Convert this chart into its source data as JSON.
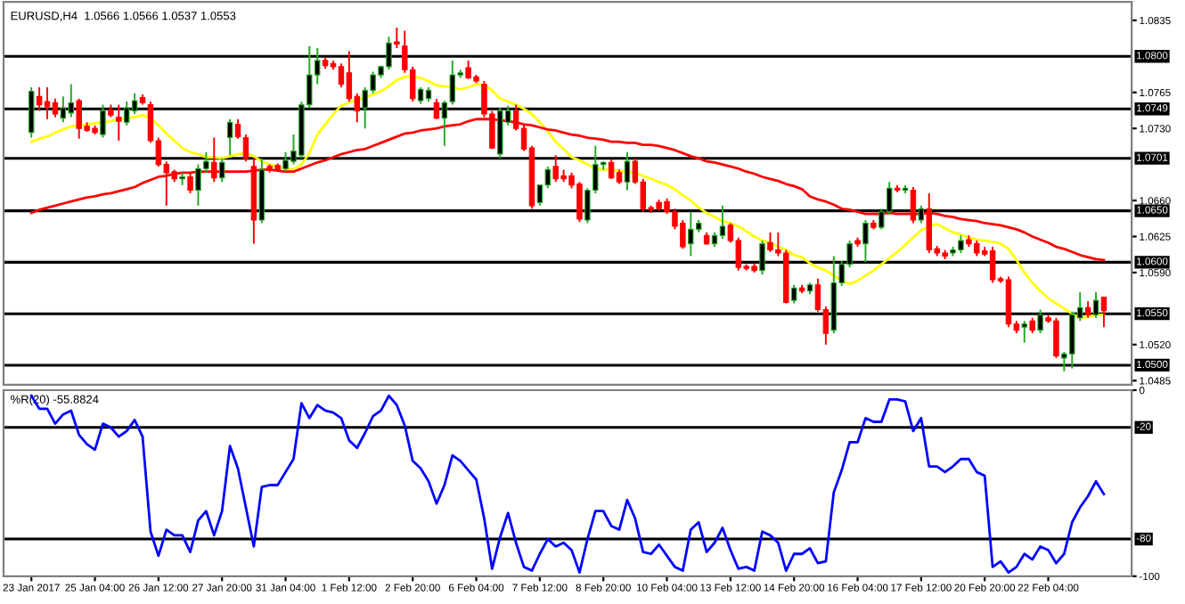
{
  "chart_data": [
    {
      "type": "candlestick",
      "title": "EURUSD,H4  1.0566 1.0566 1.0537 1.0553",
      "tick_labels": "y",
      "ohlc": [
        [
          1.0726,
          1.077,
          1.0721,
          1.0766
        ],
        [
          1.0761,
          1.077,
          1.0747,
          1.0753
        ],
        [
          1.0756,
          1.077,
          1.0739,
          1.0751
        ],
        [
          1.0755,
          1.0759,
          1.0741,
          1.0744
        ],
        [
          1.074,
          1.0761,
          1.0736,
          1.075
        ],
        [
          1.0745,
          1.0773,
          1.0741,
          1.0755
        ],
        [
          1.0757,
          1.0759,
          1.072,
          1.073
        ],
        [
          1.0732,
          1.0736,
          1.0727,
          1.0728
        ],
        [
          1.073,
          1.0733,
          1.0724,
          1.0726
        ],
        [
          1.0724,
          1.0753,
          1.0721,
          1.0747
        ],
        [
          1.0748,
          1.0753,
          1.0741,
          1.0743
        ],
        [
          1.0741,
          1.0753,
          1.0718,
          1.0737
        ],
        [
          1.0736,
          1.0756,
          1.0733,
          1.075
        ],
        [
          1.0747,
          1.0764,
          1.0744,
          1.0757
        ],
        [
          1.076,
          1.0763,
          1.0753,
          1.0755
        ],
        [
          1.0753,
          1.0756,
          1.0716,
          1.0718
        ],
        [
          1.0718,
          1.0721,
          1.0693,
          1.0695
        ],
        [
          1.0695,
          1.0698,
          1.0655,
          1.0687
        ],
        [
          1.0688,
          1.069,
          1.0678,
          1.0681
        ],
        [
          1.0681,
          1.0687,
          1.0675,
          1.0683
        ],
        [
          1.0683,
          1.0687,
          1.0667,
          1.067
        ],
        [
          1.067,
          1.0695,
          1.0655,
          1.0691
        ],
        [
          1.0691,
          1.0707,
          1.0687,
          1.0698
        ],
        [
          1.0697,
          1.0721,
          1.0678,
          1.0682
        ],
        [
          1.0682,
          1.0701,
          1.0678,
          1.0697
        ],
        [
          1.0721,
          1.0739,
          1.0704,
          1.0736
        ],
        [
          1.0734,
          1.0739,
          1.072,
          1.0722
        ],
        [
          1.0721,
          1.0724,
          1.0698,
          1.0701
        ],
        [
          1.0693,
          1.0701,
          1.0618,
          1.0641
        ],
        [
          1.0641,
          1.0701,
          1.0638,
          1.069
        ],
        [
          1.0693,
          1.0695,
          1.0687,
          1.069
        ],
        [
          1.0694,
          1.0696,
          1.0688,
          1.069
        ],
        [
          1.0691,
          1.0707,
          1.0688,
          1.0699
        ],
        [
          1.0698,
          1.0724,
          1.0695,
          1.0708
        ],
        [
          1.0704,
          1.0756,
          1.0701,
          1.0753
        ],
        [
          1.0753,
          1.081,
          1.075,
          1.0782
        ],
        [
          1.0782,
          1.0808,
          1.0773,
          1.0796
        ],
        [
          1.0796,
          1.0799,
          1.0788,
          1.0791
        ],
        [
          1.0793,
          1.0796,
          1.0787,
          1.079
        ],
        [
          1.079,
          1.0793,
          1.077,
          1.0773
        ],
        [
          1.0784,
          1.0805,
          1.0756,
          1.0759
        ],
        [
          1.0761,
          1.0764,
          1.0736,
          1.0747
        ],
        [
          1.075,
          1.077,
          1.073,
          1.0767
        ],
        [
          1.0767,
          1.0785,
          1.0764,
          1.0782
        ],
        [
          1.0782,
          1.0791,
          1.0779,
          1.079
        ],
        [
          1.079,
          1.0819,
          1.0787,
          1.0813
        ],
        [
          1.0814,
          1.0828,
          1.0808,
          1.0812
        ],
        [
          1.081,
          1.0825,
          1.0784,
          1.0787
        ],
        [
          1.0787,
          1.079,
          1.0756,
          1.0759
        ],
        [
          1.0757,
          1.077,
          1.0754,
          1.0768
        ],
        [
          1.0759,
          1.077,
          1.0756,
          1.0767
        ],
        [
          1.0755,
          1.0759,
          1.0739,
          1.074
        ],
        [
          1.074,
          1.0757,
          1.0713,
          1.0755
        ],
        [
          1.0756,
          1.0796,
          1.0753,
          1.0782
        ],
        [
          1.0782,
          1.0787,
          1.0779,
          1.0784
        ],
        [
          1.0789,
          1.0796,
          1.0778,
          1.0779
        ],
        [
          1.078,
          1.0782,
          1.0774,
          1.0776
        ],
        [
          1.0773,
          1.0776,
          1.0741,
          1.0744
        ],
        [
          1.0744,
          1.0747,
          1.071,
          1.0711
        ],
        [
          1.0705,
          1.075,
          1.0701,
          1.0747
        ],
        [
          1.0736,
          1.0752,
          1.0733,
          1.0747
        ],
        [
          1.0747,
          1.0753,
          1.0728,
          1.073
        ],
        [
          1.073,
          1.0733,
          1.0708,
          1.071
        ],
        [
          1.0711,
          1.0713,
          1.0652,
          1.0655
        ],
        [
          1.0658,
          1.0675,
          1.0655,
          1.0675
        ],
        [
          1.0675,
          1.0693,
          1.0672,
          1.069
        ],
        [
          1.0693,
          1.0704,
          1.0678,
          1.0681
        ],
        [
          1.0684,
          1.069,
          1.0678,
          1.0681
        ],
        [
          1.0684,
          1.0687,
          1.0672,
          1.0675
        ],
        [
          1.0676,
          1.0678,
          1.0639,
          1.0642
        ],
        [
          1.0641,
          1.0672,
          1.0638,
          1.067
        ],
        [
          1.067,
          1.0713,
          1.0667,
          1.0695
        ],
        [
          1.0695,
          1.0698,
          1.069,
          1.0697
        ],
        [
          1.0697,
          1.07,
          1.0681,
          1.0682
        ],
        [
          1.0687,
          1.069,
          1.0676,
          1.0678
        ],
        [
          1.0678,
          1.0707,
          1.067,
          1.0698
        ],
        [
          1.0698,
          1.0701,
          1.0676,
          1.0678
        ],
        [
          1.0678,
          1.0681,
          1.0649,
          1.0652
        ],
        [
          1.0653,
          1.0655,
          1.0648,
          1.0651
        ],
        [
          1.0658,
          1.0661,
          1.065,
          1.0652
        ],
        [
          1.0659,
          1.0662,
          1.0647,
          1.0649
        ],
        [
          1.0649,
          1.0652,
          1.0632,
          1.0635
        ],
        [
          1.0638,
          1.0641,
          1.0613,
          1.0615
        ],
        [
          1.0618,
          1.0649,
          1.0606,
          1.0632
        ],
        [
          1.0632,
          1.0641,
          1.0629,
          1.0638
        ],
        [
          1.0626,
          1.0629,
          1.0617,
          1.0618
        ],
        [
          1.0618,
          1.0629,
          1.0615,
          1.0626
        ],
        [
          1.0626,
          1.0655,
          1.0623,
          1.0635
        ],
        [
          1.0636,
          1.0638,
          1.0619,
          1.0621
        ],
        [
          1.0621,
          1.0624,
          1.0592,
          1.0595
        ],
        [
          1.0596,
          1.0598,
          1.0592,
          1.0594
        ],
        [
          1.0596,
          1.0599,
          1.059,
          1.0592
        ],
        [
          1.0592,
          1.0621,
          1.0588,
          1.0618
        ],
        [
          1.0619,
          1.0629,
          1.061,
          1.0612
        ],
        [
          1.0612,
          1.0629,
          1.0606,
          1.0609
        ],
        [
          1.0609,
          1.0612,
          1.056,
          1.0561
        ],
        [
          1.0563,
          1.0578,
          1.056,
          1.0575
        ],
        [
          1.0575,
          1.0578,
          1.057,
          1.0572
        ],
        [
          1.0572,
          1.058,
          1.0569,
          1.0578
        ],
        [
          1.0578,
          1.0584,
          1.0552,
          1.0554
        ],
        [
          1.0554,
          1.0557,
          1.052,
          1.0531
        ],
        [
          1.0534,
          1.0606,
          1.0531,
          1.058
        ],
        [
          1.058,
          1.0601,
          1.0577,
          1.0598
        ],
        [
          1.0598,
          1.0621,
          1.0595,
          1.0618
        ],
        [
          1.0621,
          1.0624,
          1.0615,
          1.0618
        ],
        [
          1.0618,
          1.0641,
          1.06,
          1.0638
        ],
        [
          1.0638,
          1.0641,
          1.0632,
          1.0634
        ],
        [
          1.0634,
          1.0652,
          1.0632,
          1.0649
        ],
        [
          1.0649,
          1.0678,
          1.0646,
          1.0672
        ],
        [
          1.0672,
          1.0675,
          1.0668,
          1.067
        ],
        [
          1.067,
          1.0675,
          1.0667,
          1.0672
        ],
        [
          1.067,
          1.0673,
          1.0638,
          1.0641
        ],
        [
          1.0641,
          1.0655,
          1.0638,
          1.0652
        ],
        [
          1.0652,
          1.0667,
          1.0609,
          1.0612
        ],
        [
          1.0613,
          1.0616,
          1.0606,
          1.0609
        ],
        [
          1.0609,
          1.0612,
          1.0603,
          1.0606
        ],
        [
          1.0609,
          1.0615,
          1.0606,
          1.0612
        ],
        [
          1.0612,
          1.0626,
          1.0609,
          1.0621
        ],
        [
          1.0622,
          1.0626,
          1.0615,
          1.0618
        ],
        [
          1.0618,
          1.0621,
          1.0606,
          1.0609
        ],
        [
          1.0611,
          1.0615,
          1.0606,
          1.0608
        ],
        [
          1.0611,
          1.0615,
          1.058,
          1.0583
        ],
        [
          1.0584,
          1.0586,
          1.058,
          1.0582
        ],
        [
          1.0583,
          1.0586,
          1.0537,
          1.054
        ],
        [
          1.054,
          1.0543,
          1.0531,
          1.0534
        ],
        [
          1.0537,
          1.0543,
          1.0522,
          1.054
        ],
        [
          1.0543,
          1.0546,
          1.0531,
          1.0534
        ],
        [
          1.0534,
          1.0554,
          1.0531,
          1.0549
        ],
        [
          1.0546,
          1.0549,
          1.0541,
          1.0543
        ],
        [
          1.0543,
          1.0546,
          1.0507,
          1.0509
        ],
        [
          1.0507,
          1.0513,
          1.0494,
          1.0511
        ],
        [
          1.0511,
          1.0552,
          1.0497,
          1.0549
        ],
        [
          1.0546,
          1.0571,
          1.0543,
          1.0556
        ],
        [
          1.0556,
          1.0562,
          1.0546,
          1.0549
        ],
        [
          1.0549,
          1.0571,
          1.0546,
          1.0563
        ],
        [
          1.0566,
          1.0566,
          1.0537,
          1.0553
        ]
      ],
      "series": [
        {
          "type": "line",
          "color": "#ffff00",
          "values": [
            1.0717,
            1.072,
            1.0722,
            1.0726,
            1.0729,
            1.0732,
            1.0733,
            1.0734,
            1.0735,
            1.0736,
            1.0737,
            1.0739,
            1.074,
            1.0741,
            1.0743,
            1.074,
            1.0733,
            1.0725,
            1.0718,
            1.0711,
            1.0707,
            1.0705,
            1.0702,
            1.0702,
            1.0701,
            1.0703,
            1.0705,
            1.0706,
            1.0703,
            1.0698,
            1.0695,
            1.0693,
            1.0691,
            1.069,
            1.0695,
            1.0706,
            1.0724,
            1.0734,
            1.0744,
            1.0752,
            1.0755,
            1.0758,
            1.076,
            1.0763,
            1.0766,
            1.0771,
            1.0777,
            1.078,
            1.0781,
            1.0779,
            1.0776,
            1.0772,
            1.0771,
            1.077,
            1.0768,
            1.077,
            1.0773,
            1.0772,
            1.0767,
            1.0759,
            1.0756,
            1.0753,
            1.0749,
            1.0744,
            1.0736,
            1.0727,
            1.0717,
            1.071,
            1.0702,
            1.0699,
            1.0695,
            1.0691,
            1.069,
            1.069,
            1.0689,
            1.0688,
            1.0687,
            1.0684,
            1.0681,
            1.0678,
            1.0675,
            1.0671,
            1.0665,
            1.066,
            1.0653,
            1.0648,
            1.0644,
            1.064,
            1.0638,
            1.0635,
            1.063,
            1.0625,
            1.0621,
            1.0619,
            1.0615,
            1.0612,
            1.0607,
            1.0605,
            1.0599,
            1.0595,
            1.0592,
            1.0587,
            1.0582,
            1.0579,
            1.0582,
            1.0587,
            1.0592,
            1.0598,
            1.0604,
            1.061,
            1.0617,
            1.0624,
            1.0631,
            1.0635,
            1.0637,
            1.0633,
            1.0629,
            1.0627,
            1.0624,
            1.0622,
            1.0621,
            1.062,
            1.0618,
            1.0613,
            1.0602,
            1.059,
            1.058,
            1.0572,
            1.0565,
            1.056,
            1.0555,
            1.055,
            1.0546,
            1.0547,
            1.0549,
            1.0549
          ]
        },
        {
          "type": "line",
          "color": "#ff0000",
          "values": [
            1.0648,
            1.0651,
            1.0653,
            1.0655,
            1.0657,
            1.0659,
            1.0661,
            1.0663,
            1.0664,
            1.0666,
            1.0667,
            1.0669,
            1.0671,
            1.0673,
            1.0677,
            1.068,
            1.0683,
            1.0684,
            1.0686,
            1.0687,
            1.0687,
            1.0688,
            1.0688,
            1.0688,
            1.0688,
            1.0688,
            1.0688,
            1.0688,
            1.0689,
            1.069,
            1.069,
            1.0689,
            1.0688,
            1.0688,
            1.0691,
            1.0694,
            1.0697,
            1.0699,
            1.0702,
            1.0705,
            1.0707,
            1.0709,
            1.071,
            1.0713,
            1.0716,
            1.0719,
            1.0722,
            1.0725,
            1.0726,
            1.0728,
            1.0729,
            1.073,
            1.0732,
            1.0733,
            1.0734,
            1.0737,
            1.0739,
            1.0739,
            1.0739,
            1.0738,
            1.0737,
            1.0736,
            1.0734,
            1.0733,
            1.0731,
            1.0729,
            1.0728,
            1.0726,
            1.0724,
            1.0723,
            1.0721,
            1.072,
            1.0719,
            1.0717,
            1.0717,
            1.0716,
            1.0716,
            1.0714,
            1.0714,
            1.0713,
            1.0711,
            1.0709,
            1.0706,
            1.0703,
            1.0701,
            1.0698,
            1.0697,
            1.0695,
            1.0693,
            1.0691,
            1.0688,
            1.0686,
            1.0683,
            1.0681,
            1.0679,
            1.0676,
            1.0674,
            1.0671,
            1.0664,
            1.0661,
            1.0659,
            1.0656,
            1.0652,
            1.0651,
            1.0649,
            1.0647,
            1.0647,
            1.0647,
            1.0648,
            1.0647,
            1.0647,
            1.0647,
            1.0647,
            1.0648,
            1.0647,
            1.0645,
            1.0644,
            1.0642,
            1.0641,
            1.064,
            1.0638,
            1.0637,
            1.0636,
            1.0634,
            1.0632,
            1.0629,
            1.0625,
            1.0622,
            1.0619,
            1.0615,
            1.0613,
            1.061,
            1.0607,
            1.0605,
            1.0603,
            1.0602
          ]
        }
      ],
      "ylim": [
        1.0481,
        1.0853
      ],
      "yticks": [
        1.0835,
        1.0765,
        {
          "value": 1.073,
          "label": "1.0730"
        },
        {
          "value": 1.066,
          "label": "1.0660"
        },
        1.0625,
        {
          "value": 1.059,
          "label": "1.0590"
        },
        {
          "value": 1.052,
          "label": "1.0520"
        },
        1.0485
      ],
      "ref_lines": [
        {
          "axis": "y",
          "value": 1.08,
          "label": "1.0800",
          "color": "#000000"
        },
        {
          "axis": "y",
          "value": 1.0749,
          "label": "1.0749",
          "color": "#000000"
        },
        {
          "axis": "y",
          "value": 1.0701,
          "label": "1.0701",
          "color": "#000000"
        },
        {
          "axis": "y",
          "value": 1.065,
          "label": "1.0650",
          "color": "#000000"
        },
        {
          "axis": "y",
          "value": 1.06,
          "label": "1.0600",
          "color": "#000000"
        },
        {
          "axis": "y",
          "value": 1.055,
          "label": "1.0550",
          "color": "#000000"
        },
        {
          "axis": "y",
          "value": 1.05,
          "label": "1.0500",
          "color": "#000000"
        }
      ]
    },
    {
      "type": "line",
      "title": "%R(20) -55.8824",
      "categories": [
        "23 Jan 2017",
        null,
        null,
        null,
        null,
        null,
        null,
        null,
        "25 Jan 04:00",
        null,
        null,
        null,
        null,
        null,
        null,
        null,
        "26 Jan 12:00",
        null,
        null,
        null,
        null,
        null,
        null,
        null,
        "27 Jan 20:00",
        null,
        null,
        null,
        null,
        null,
        null,
        null,
        "31 Jan 04:00",
        null,
        null,
        null,
        null,
        null,
        null,
        null,
        "1 Feb 12:00",
        null,
        null,
        null,
        null,
        null,
        null,
        null,
        "2 Feb 20:00",
        null,
        null,
        null,
        null,
        null,
        null,
        null,
        "6 Feb 04:00",
        null,
        null,
        null,
        null,
        null,
        null,
        null,
        "7 Feb 12:00",
        null,
        null,
        null,
        null,
        null,
        null,
        null,
        "8 Feb 20:00",
        null,
        null,
        null,
        null,
        null,
        null,
        null,
        "10 Feb 04:00",
        null,
        null,
        null,
        null,
        null,
        null,
        null,
        "13 Feb 12:00",
        null,
        null,
        null,
        null,
        null,
        null,
        null,
        "14 Feb 20:00",
        null,
        null,
        null,
        null,
        null,
        null,
        null,
        "16 Feb 04:00",
        null,
        null,
        null,
        null,
        null,
        null,
        null,
        "17 Feb 12:00",
        null,
        null,
        null,
        null,
        null,
        null,
        null,
        "20 Feb 20:00",
        null,
        null,
        null,
        null,
        null,
        null,
        null,
        "22 Feb 04:00",
        null,
        null,
        null,
        null,
        null,
        null,
        null
      ],
      "series": [
        {
          "color": "#0000ff",
          "values": [
            -3,
            -10,
            -10,
            -18,
            -13,
            -11,
            -24,
            -29,
            -32,
            -18,
            -20,
            -25,
            -22,
            -16,
            -25,
            -76,
            -89,
            -75,
            -78,
            -78,
            -87,
            -70,
            -65,
            -78,
            -65,
            -30,
            -42,
            -63,
            -84,
            -52,
            -51,
            -51,
            -44,
            -37,
            -7,
            -15,
            -8,
            -11,
            -12,
            -15,
            -27,
            -31,
            -23,
            -14,
            -11,
            -3,
            -8,
            -19,
            -38,
            -42,
            -49,
            -61,
            -51,
            -35,
            -38,
            -43,
            -48,
            -69,
            -96,
            -79,
            -66,
            -82,
            -95,
            -97,
            -88,
            -80,
            -84,
            -82,
            -86,
            -98,
            -80,
            -65,
            -65,
            -73,
            -75,
            -59,
            -69,
            -87,
            -88,
            -83,
            -89,
            -95,
            -97,
            -75,
            -71,
            -87,
            -82,
            -74,
            -86,
            -96,
            -95,
            -97,
            -76,
            -78,
            -82,
            -97,
            -88,
            -88,
            -85,
            -93,
            -92,
            -55,
            -43,
            -28,
            -28,
            -15,
            -17,
            -17,
            -5,
            -5,
            -6,
            -22,
            -15,
            -41,
            -41,
            -44,
            -41,
            -37,
            -37,
            -44,
            -46,
            -95,
            -92,
            -98,
            -95,
            -88,
            -91,
            -84,
            -86,
            -93,
            -88,
            -71,
            -63,
            -57,
            -49,
            -55.8824
          ]
        }
      ],
      "ylim": [
        -100,
        0
      ],
      "yticks": [
        0,
        -100
      ],
      "ref_lines": [
        {
          "axis": "y",
          "value": -20,
          "label": "-20",
          "color": "#000000"
        },
        {
          "axis": "y",
          "value": -80,
          "label": "-80",
          "color": "#000000"
        }
      ]
    }
  ]
}
